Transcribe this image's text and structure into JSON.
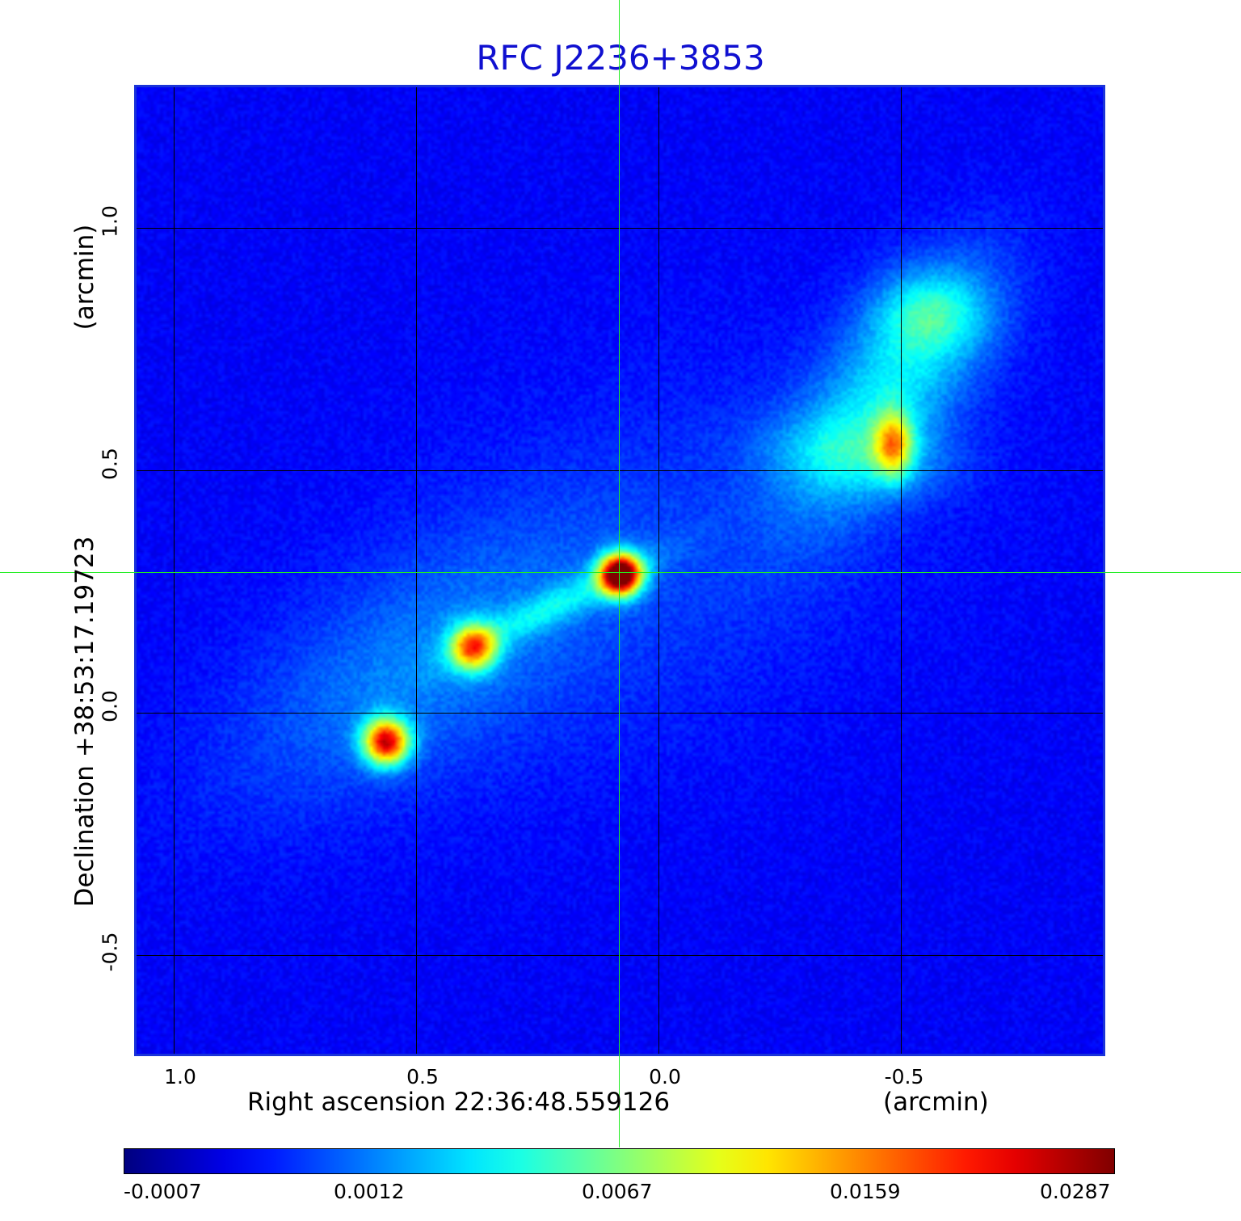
{
  "title": "RFC J2236+3853",
  "colors": {
    "title": "#1010d0",
    "frame": "#1a33d9",
    "crosshair": "#22ee22",
    "grid": "#000000"
  },
  "x_axis": {
    "label": "Right ascension  22:36:48.559126",
    "unit": "(arcmin)",
    "ticks": [
      "1.0",
      "0.5",
      "0.0",
      "-0.5"
    ]
  },
  "y_axis": {
    "label": "Declination  +38:53:17.19723",
    "unit": "(arcmin)",
    "ticks": [
      "1.0",
      "0.5",
      "0.0",
      "-0.5"
    ]
  },
  "colorbar": {
    "colormap": "jet",
    "ticks": [
      "-0.0007",
      "0.0012",
      "0.0067",
      "0.0159",
      "0.0287"
    ]
  },
  "image": {
    "type": "radio intensity map",
    "colormap": "jet",
    "features": [
      "bright compact core at crosshair",
      "south-east jet with two knots",
      "north-west diffuse lobe with hotspot"
    ]
  }
}
